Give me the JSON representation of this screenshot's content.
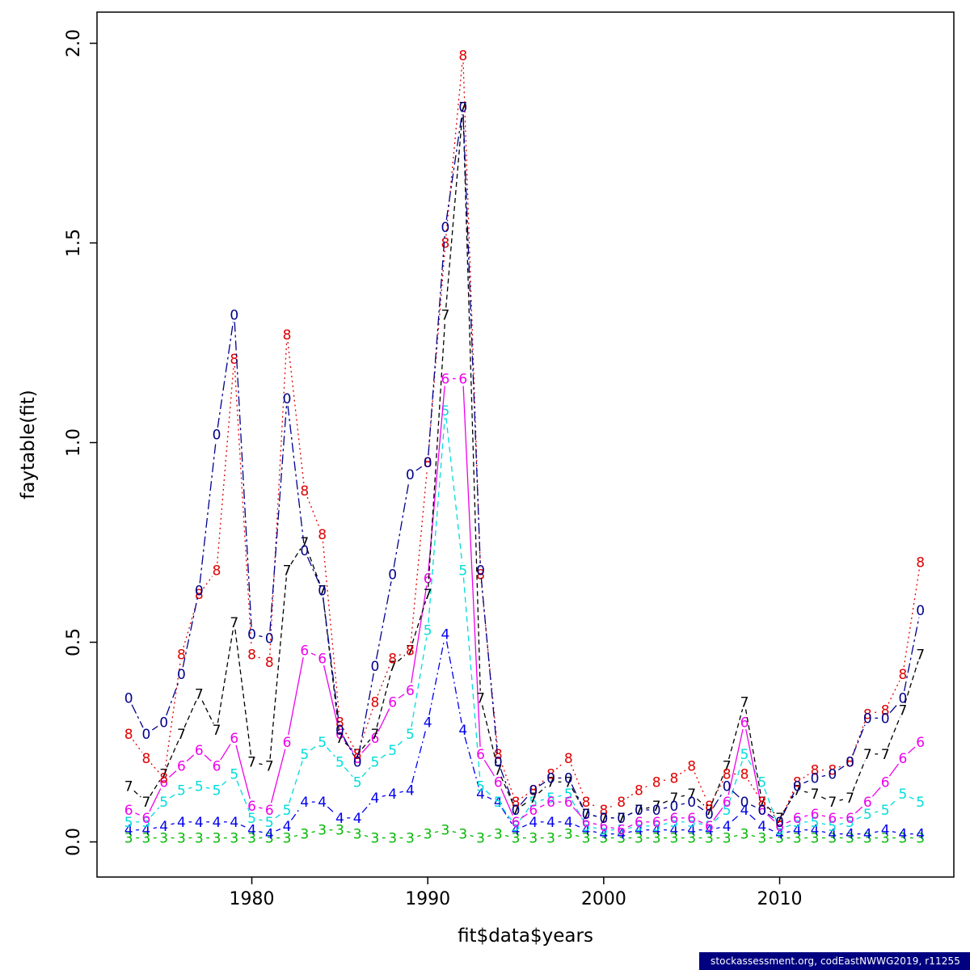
{
  "page": {
    "background": "#ffffff"
  },
  "footer": {
    "text": "stockassessment.org, codEastNWWG2019, r11255",
    "background": "#000080",
    "text_color": "#ffffff"
  },
  "chart_data": {
    "type": "line",
    "title": "",
    "xlabel": "fit$data$years",
    "ylabel": "faytable(fit)",
    "grid": false,
    "legend": "none (series labeled by plotted characters)",
    "x_range": [
      1971.2,
      2019.9
    ],
    "y_range": [
      -0.088,
      2.078
    ],
    "x_ticks": [
      1980,
      1990,
      2000,
      2010
    ],
    "y_ticks": [
      0.0,
      0.5,
      1.0,
      1.5,
      2.0
    ],
    "y_tick_labels": [
      "0.0",
      "0.5",
      "1.0",
      "1.5",
      "2.0"
    ],
    "x": [
      1973,
      1974,
      1975,
      1976,
      1977,
      1978,
      1979,
      1980,
      1981,
      1982,
      1983,
      1984,
      1985,
      1986,
      1987,
      1988,
      1989,
      1990,
      1991,
      1992,
      1993,
      1994,
      1995,
      1996,
      1997,
      1998,
      1999,
      2000,
      2001,
      2002,
      2003,
      2004,
      2005,
      2006,
      2007,
      2008,
      2009,
      2010,
      2011,
      2012,
      2013,
      2014,
      2015,
      2016,
      2017,
      2018
    ],
    "series": [
      {
        "name": "age-3",
        "label": "3",
        "color": "#00B800",
        "dash": "",
        "values": [
          0.01,
          0.01,
          0.01,
          0.01,
          0.01,
          0.01,
          0.01,
          0.01,
          0.01,
          0.01,
          0.02,
          0.03,
          0.03,
          0.02,
          0.01,
          0.01,
          0.01,
          0.02,
          0.03,
          0.02,
          0.01,
          0.02,
          0.01,
          0.01,
          0.01,
          0.02,
          0.01,
          0.01,
          0.01,
          0.01,
          0.01,
          0.01,
          0.01,
          0.01,
          0.01,
          0.02,
          0.01,
          0.01,
          0.01,
          0.01,
          0.01,
          0.01,
          0.01,
          0.01,
          0.01,
          0.01
        ]
      },
      {
        "name": "age-4",
        "label": "4",
        "color": "#0000EE",
        "dash": "9 4 2 4",
        "values": [
          0.03,
          0.03,
          0.04,
          0.05,
          0.05,
          0.05,
          0.05,
          0.03,
          0.02,
          0.04,
          0.1,
          0.1,
          0.06,
          0.06,
          0.11,
          0.12,
          0.13,
          0.3,
          0.52,
          0.28,
          0.12,
          0.1,
          0.03,
          0.05,
          0.05,
          0.05,
          0.03,
          0.02,
          0.02,
          0.03,
          0.03,
          0.03,
          0.03,
          0.03,
          0.04,
          0.08,
          0.04,
          0.02,
          0.03,
          0.03,
          0.02,
          0.02,
          0.02,
          0.03,
          0.02,
          0.02
        ]
      },
      {
        "name": "age-5",
        "label": "5",
        "color": "#00DCDC",
        "dash": "7 5",
        "values": [
          0.05,
          0.05,
          0.1,
          0.13,
          0.14,
          0.13,
          0.17,
          0.06,
          0.05,
          0.08,
          0.22,
          0.25,
          0.2,
          0.15,
          0.2,
          0.23,
          0.27,
          0.53,
          1.08,
          0.68,
          0.14,
          0.1,
          0.04,
          0.1,
          0.11,
          0.12,
          0.04,
          0.03,
          0.03,
          0.04,
          0.04,
          0.05,
          0.05,
          0.04,
          0.08,
          0.22,
          0.15,
          0.03,
          0.05,
          0.05,
          0.04,
          0.05,
          0.07,
          0.08,
          0.12,
          0.1
        ]
      },
      {
        "name": "age-6",
        "label": "6",
        "color": "#EE00EE",
        "dash": "",
        "values": [
          0.08,
          0.06,
          0.15,
          0.19,
          0.23,
          0.19,
          0.26,
          0.09,
          0.08,
          0.25,
          0.48,
          0.46,
          0.27,
          0.21,
          0.26,
          0.35,
          0.38,
          0.66,
          1.16,
          1.16,
          0.22,
          0.15,
          0.05,
          0.08,
          0.1,
          0.1,
          0.05,
          0.04,
          0.03,
          0.05,
          0.05,
          0.06,
          0.06,
          0.04,
          0.1,
          0.3,
          0.08,
          0.04,
          0.06,
          0.07,
          0.06,
          0.06,
          0.1,
          0.15,
          0.21,
          0.25
        ]
      },
      {
        "name": "age-7",
        "label": "7",
        "color": "#000000",
        "dash": "6 4",
        "values": [
          0.14,
          0.1,
          0.17,
          0.27,
          0.37,
          0.28,
          0.55,
          0.2,
          0.19,
          0.68,
          0.75,
          0.63,
          0.26,
          0.22,
          0.27,
          0.44,
          0.48,
          0.62,
          1.32,
          1.84,
          0.36,
          0.18,
          0.08,
          0.11,
          0.15,
          0.15,
          0.07,
          0.06,
          0.06,
          0.08,
          0.09,
          0.11,
          0.12,
          0.08,
          0.19,
          0.35,
          0.1,
          0.06,
          0.13,
          0.12,
          0.1,
          0.11,
          0.22,
          0.22,
          0.33,
          0.47
        ]
      },
      {
        "name": "age-8",
        "label": "8",
        "color": "#E00000",
        "dash": "2 4",
        "values": [
          0.27,
          0.21,
          0.16,
          0.47,
          0.62,
          0.68,
          1.21,
          0.47,
          0.45,
          1.27,
          0.88,
          0.77,
          0.3,
          0.22,
          0.35,
          0.46,
          0.48,
          0.95,
          1.5,
          1.97,
          0.67,
          0.22,
          0.1,
          0.13,
          0.17,
          0.21,
          0.1,
          0.08,
          0.1,
          0.13,
          0.15,
          0.16,
          0.19,
          0.09,
          0.17,
          0.17,
          0.1,
          0.05,
          0.15,
          0.18,
          0.18,
          0.2,
          0.32,
          0.33,
          0.42,
          0.7
        ]
      },
      {
        "name": "age-10",
        "label": "0",
        "color": "#00008B",
        "dash": "12 4 3 4",
        "values": [
          0.36,
          0.27,
          0.3,
          0.42,
          0.63,
          1.02,
          1.32,
          0.52,
          0.51,
          1.11,
          0.73,
          0.63,
          0.28,
          0.2,
          0.44,
          0.67,
          0.92,
          0.95,
          1.54,
          1.84,
          0.68,
          0.2,
          0.08,
          0.13,
          0.16,
          0.16,
          0.07,
          0.06,
          0.06,
          0.08,
          0.08,
          0.09,
          0.1,
          0.07,
          0.14,
          0.1,
          0.08,
          0.05,
          0.14,
          0.16,
          0.17,
          0.2,
          0.31,
          0.31,
          0.36,
          0.58
        ]
      }
    ]
  }
}
